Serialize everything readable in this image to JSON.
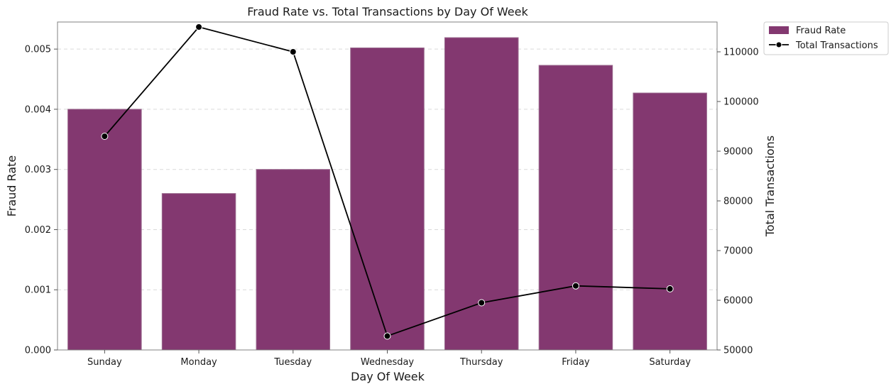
{
  "chart_data": {
    "type": "bar+line",
    "title": "Fraud Rate vs. Total Transactions by Day Of Week",
    "xlabel": "Day Of Week",
    "ylabel_left": "Fraud Rate",
    "ylabel_right": "Total Transactions",
    "categories": [
      "Sunday",
      "Monday",
      "Tuesday",
      "Wednesday",
      "Thursday",
      "Friday",
      "Saturday"
    ],
    "series": [
      {
        "name": "Fraud Rate",
        "type": "bar",
        "axis": "left",
        "color": "#833870",
        "values": [
          0.004,
          0.0026,
          0.003,
          0.00502,
          0.00519,
          0.00473,
          0.00427
        ]
      },
      {
        "name": "Total Transactions",
        "type": "line",
        "axis": "right",
        "color": "#000000",
        "values": [
          93000,
          115000,
          110000,
          52800,
          59500,
          62900,
          62300
        ]
      }
    ],
    "ylim_left": [
      0,
      0.00545
    ],
    "ylim_right": [
      50000,
      116000
    ],
    "yticks_left": [
      "0.000",
      "0.001",
      "0.002",
      "0.003",
      "0.004",
      "0.005"
    ],
    "yticks_right": [
      "50000",
      "60000",
      "70000",
      "80000",
      "90000",
      "100000",
      "110000"
    ],
    "grid": "horizontal-dashed",
    "legend_position": "outside-top-right"
  }
}
